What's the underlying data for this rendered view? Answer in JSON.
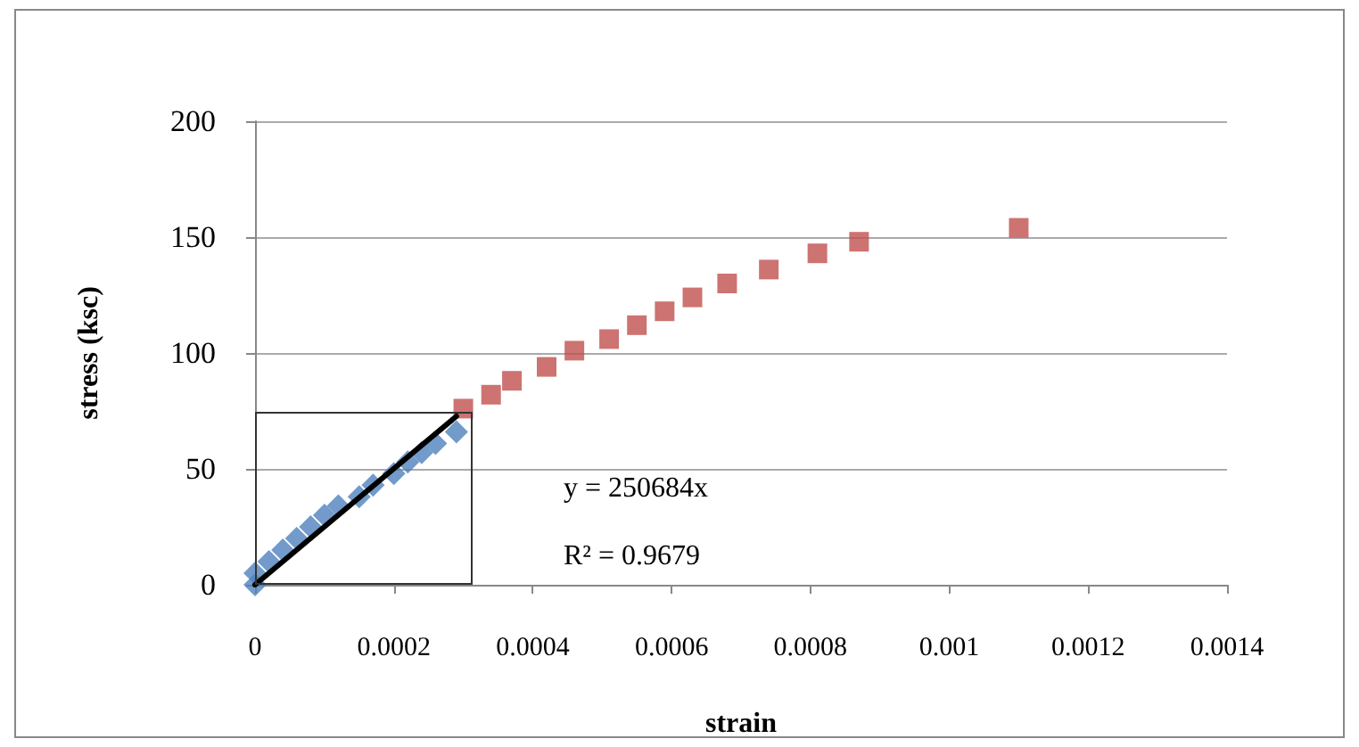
{
  "chart_data": {
    "type": "scatter",
    "xlabel": "strain",
    "ylabel": "stress (ksc)",
    "xlim": [
      0,
      0.0014
    ],
    "xticks": [
      0,
      0.0002,
      0.0004,
      0.0006,
      0.0008,
      0.001,
      0.0012,
      0.0014
    ],
    "ylim": [
      0,
      200
    ],
    "yticks": [
      0,
      50,
      100,
      150,
      200
    ],
    "grid": "y",
    "series": [
      {
        "color": "#4f81bd",
        "marker": "diamond",
        "x": [
          0,
          0,
          2e-05,
          4e-05,
          6e-05,
          8e-05,
          0.0001,
          0.00012,
          0.00015,
          0.00017,
          0.0002,
          0.00022,
          0.00024,
          0.00026,
          0.00029
        ],
        "values": [
          0,
          5,
          10,
          15,
          20,
          25,
          30,
          34,
          38,
          43,
          48,
          53,
          57,
          61,
          66
        ]
      },
      {
        "color": "#c0504d",
        "marker": "square",
        "x": [
          0.0003,
          0.00034,
          0.00037,
          0.00042,
          0.00046,
          0.00051,
          0.00055,
          0.00059,
          0.00063,
          0.00068,
          0.00074,
          0.00081,
          0.00087,
          0.0011
        ],
        "values": [
          76,
          82,
          88,
          94,
          101,
          106,
          112,
          118,
          124,
          130,
          136,
          143,
          148,
          154
        ]
      },
      {
        "type": "line",
        "color": "#000000",
        "marker": "none",
        "x": [
          0,
          0.00029
        ],
        "values": [
          0,
          72.7
        ]
      }
    ],
    "annotations": [
      "y = 250684x",
      "R² = 0.9679"
    ]
  }
}
